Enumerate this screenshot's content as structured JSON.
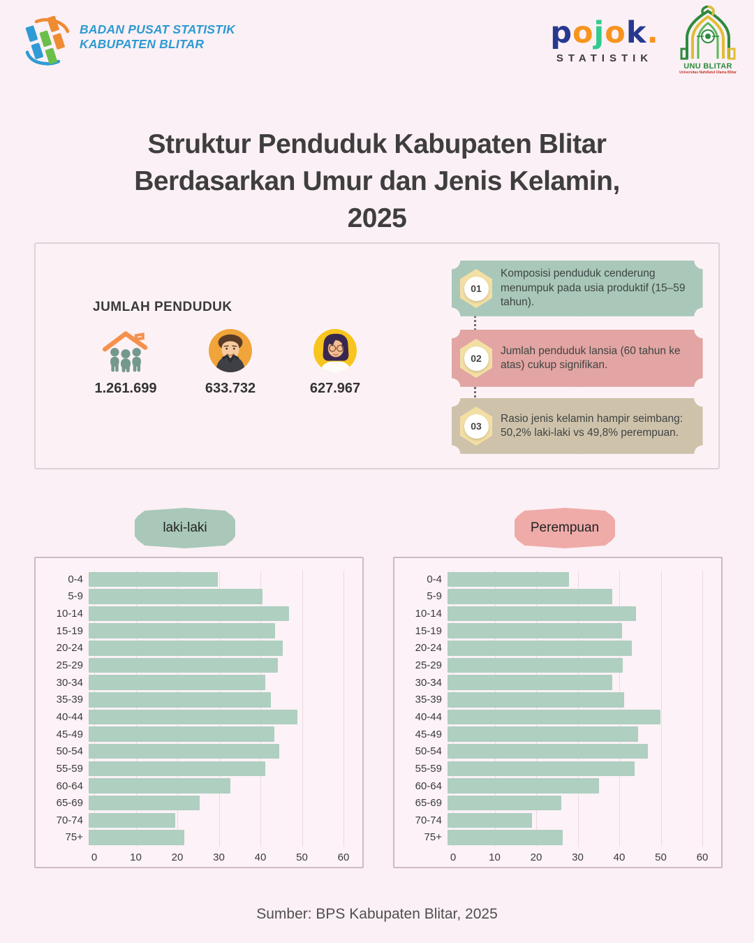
{
  "page": {
    "background_color": "#fbf0f5"
  },
  "header": {
    "bps": {
      "line1": "BADAN PUSAT STATISTIK",
      "line2": "KABUPATEN BLITAR",
      "text_color": "#2d9ad2"
    },
    "pojok": {
      "letters": [
        "p",
        "o",
        "j",
        "o",
        "k",
        "."
      ],
      "subtitle": "STATISTIK",
      "colors": {
        "navy": "#27398f",
        "orange": "#f7941e",
        "green": "#2fcd8d",
        "dark": "#3a3a3a"
      }
    },
    "unu": {
      "name": "UNU BLITAR",
      "subtitle": "Universitas Nahdlatul Ulama Blitar"
    }
  },
  "title": {
    "line1": "Struktur Penduduk Kabupaten Blitar",
    "line2": "Berdasarkan Umur dan Jenis Kelamin,",
    "line3": "2025"
  },
  "summary": {
    "heading": "JUMLAH PENDUDUK",
    "stats": [
      {
        "icon": "family-icon",
        "value": "1.261.699"
      },
      {
        "icon": "male-avatar-icon",
        "value": "633.732"
      },
      {
        "icon": "female-avatar-icon",
        "value": "627.967"
      }
    ],
    "notes": [
      {
        "number": "01",
        "text": "Komposisi penduduk cenderung menumpuk pada usia produktif (15–59 tahun).",
        "color": "#a9c8b9"
      },
      {
        "number": "02",
        "text": "Jumlah penduduk lansia (60 tahun ke atas) cukup signifikan.",
        "color": "#e2a5a3"
      },
      {
        "number": "03",
        "text": "Rasio jenis kelamin hampir seimbang: 50,2% laki-laki vs 49,8% perempuan.",
        "color": "#cfc2ab"
      }
    ]
  },
  "chart_data": [
    {
      "type": "bar",
      "orientation": "horizontal",
      "title": "laki-laki",
      "badge_color": "#a9c8b9",
      "bar_color": "#afcfc0",
      "categories": [
        "0-4",
        "5-9",
        "10-14",
        "15-19",
        "20-24",
        "25-29",
        "30-34",
        "35-39",
        "40-44",
        "45-49",
        "50-54",
        "55-59",
        "60-64",
        "65-69",
        "70-74",
        "75+"
      ],
      "values": [
        31.1,
        41.9,
        48.3,
        44.9,
        46.7,
        45.5,
        42.6,
        43.8,
        50.2,
        44.7,
        45.8,
        42.6,
        34.1,
        26.8,
        20.8,
        23.0
      ],
      "xlim": [
        0,
        60
      ],
      "xticks": [
        0,
        10,
        20,
        30,
        40,
        50,
        60
      ],
      "grid": true,
      "legend": "none"
    },
    {
      "type": "bar",
      "orientation": "horizontal",
      "title": "Perempuan",
      "badge_color": "#efaba8",
      "bar_color": "#afcfc0",
      "categories": [
        "0-4",
        "5-9",
        "10-14",
        "15-19",
        "20-24",
        "25-29",
        "30-34",
        "35-39",
        "40-44",
        "45-49",
        "50-54",
        "55-59",
        "60-64",
        "65-69",
        "70-74",
        "75+"
      ],
      "values": [
        29.2,
        39.7,
        45.4,
        42.1,
        44.3,
        42.2,
        39.6,
        42.5,
        51.2,
        45.8,
        48.2,
        45.0,
        36.4,
        27.4,
        20.4,
        27.7
      ],
      "xlim": [
        0,
        60
      ],
      "xticks": [
        0,
        10,
        20,
        30,
        40,
        50,
        60
      ],
      "grid": true,
      "legend": "none"
    }
  ],
  "footer": {
    "source": "Sumber: BPS Kabupaten Blitar, 2025"
  }
}
